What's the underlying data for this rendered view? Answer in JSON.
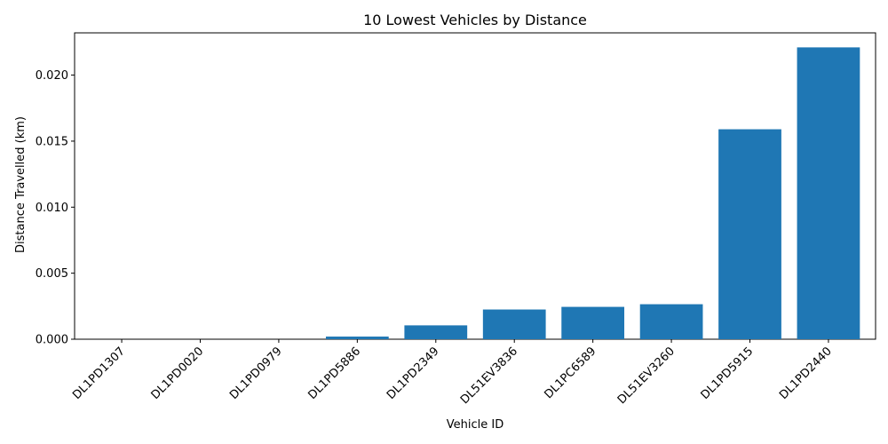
{
  "chart_data": {
    "type": "bar",
    "title": "10 Lowest Vehicles by Distance",
    "xlabel": "Vehicle ID",
    "ylabel": "Distance Travelled (km)",
    "categories": [
      "DL1PD1307",
      "DL1PD0020",
      "DL1PD0979",
      "DL1PD5886",
      "DL1PD2349",
      "DL51EV3836",
      "DL1PC6589",
      "DL51EV3260",
      "DL1PD5915",
      "DL1PD2440"
    ],
    "values": [
      0.0,
      0.0,
      0.0,
      0.0002,
      0.00105,
      0.00225,
      0.00245,
      0.00265,
      0.0159,
      0.0221
    ],
    "ylim": [
      0,
      0.0232
    ],
    "yticks": [
      0.0,
      0.005,
      0.01,
      0.015,
      0.02
    ],
    "ytick_labels": [
      "0.000",
      "0.005",
      "0.010",
      "0.015",
      "0.020"
    ],
    "bar_color": "#1f77b4",
    "grid": false,
    "legend": "none"
  }
}
